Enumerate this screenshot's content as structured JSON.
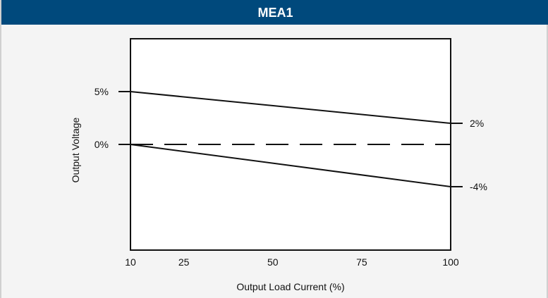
{
  "chart_data": {
    "type": "line",
    "title": "MEA1",
    "xlabel": "Output Load Current (%)",
    "ylabel": "Output Voltage",
    "xlim": [
      10,
      100
    ],
    "ylim": [
      -10,
      10
    ],
    "x_ticks": [
      10,
      25,
      50,
      75,
      100
    ],
    "y_tick_labels": [
      {
        "value": 5,
        "label": "5%"
      },
      {
        "value": 0,
        "label": "0%"
      }
    ],
    "series": [
      {
        "x": [
          10,
          100
        ],
        "y": [
          5,
          2
        ],
        "style": "solid",
        "end_label": "2%"
      },
      {
        "x": [
          10,
          100
        ],
        "y": [
          0,
          0
        ],
        "style": "dashed"
      },
      {
        "x": [
          10,
          100
        ],
        "y": [
          0,
          -4
        ],
        "style": "solid",
        "end_label": "-4%"
      }
    ],
    "grid": false
  },
  "colors": {
    "title_bar": "#00497c",
    "title_text": "#ffffff",
    "background": "#f4f4f4",
    "line": "#111111"
  }
}
